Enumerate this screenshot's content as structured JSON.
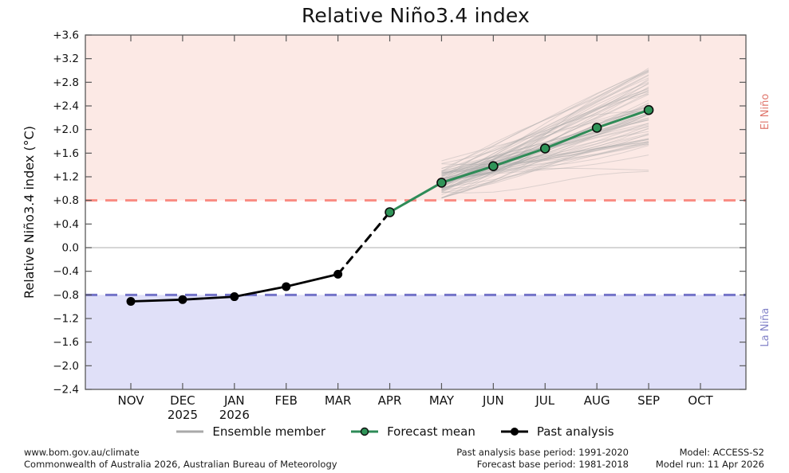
{
  "chart_data": {
    "type": "line",
    "title": "Relative Niño3.4 index",
    "xlabel": "",
    "ylabel": "Relative Niño3.4 index (°C)",
    "ylim": [
      -2.4,
      3.6
    ],
    "yticks": {
      "values": [
        3.6,
        3.2,
        2.8,
        2.4,
        2.0,
        1.6,
        1.2,
        0.8,
        0.4,
        0.0,
        -0.4,
        -0.8,
        -1.2,
        -1.6,
        -2.0,
        -2.4
      ],
      "labels": [
        "+3.6",
        "+3.2",
        "+2.8",
        "+2.4",
        "+2.0",
        "+1.6",
        "+1.2",
        "+0.8",
        "+0.4",
        "0.0",
        "−0.4",
        "−0.8",
        "−1.2",
        "−1.6",
        "−2.0",
        "−2.4"
      ]
    },
    "categories": [
      "NOV",
      "DEC",
      "JAN",
      "FEB",
      "MAR",
      "APR",
      "MAY",
      "JUN",
      "JUL",
      "AUG",
      "SEP",
      "OCT"
    ],
    "year_labels": [
      {
        "index": 1,
        "text": "2025"
      },
      {
        "index": 2,
        "text": "2026"
      }
    ],
    "grid": false,
    "bands": [
      {
        "name": "el-nino",
        "range": [
          0.8,
          3.6
        ],
        "fill": "#fce9e5",
        "label": "El Niño",
        "label_color": "#e0786e",
        "label_at": 2.3
      },
      {
        "name": "la-nina",
        "range": [
          -2.4,
          -0.8
        ],
        "fill": "#e0e0f8",
        "label": "La Niña",
        "label_color": "#8282c8",
        "label_at": -1.35
      }
    ],
    "thresholds": [
      {
        "name": "el-nino-threshold",
        "value": 0.8,
        "color": "#f98b82",
        "dash": [
          15,
          10
        ],
        "width": 3
      },
      {
        "name": "la-nina-threshold",
        "value": -0.8,
        "color": "#7373c8",
        "dash": [
          15,
          10
        ],
        "width": 3
      },
      {
        "name": "zero-line",
        "value": 0.0,
        "color": "#bdbdbd",
        "dash": null,
        "width": 1.2
      }
    ],
    "series": [
      {
        "name": "Past analysis",
        "role": "past",
        "color": "#000000",
        "width": 2.8,
        "marker": {
          "r": 5,
          "fill": "#000000",
          "stroke": "#000000",
          "stroke_width": 1
        },
        "x": [
          0,
          1,
          2,
          3,
          4
        ],
        "values": [
          -0.91,
          -0.88,
          -0.83,
          -0.66,
          -0.45
        ]
      },
      {
        "name": "Past-to-forecast transition",
        "role": "transition",
        "color": "#000000",
        "width": 3,
        "dash": [
          10,
          8
        ],
        "x": [
          4,
          5
        ],
        "values": [
          -0.45,
          0.6
        ]
      },
      {
        "name": "Forecast mean",
        "role": "forecast",
        "color": "#2e8b57",
        "width": 3,
        "marker": {
          "r": 5.5,
          "fill": "#2f9458",
          "stroke": "#0d0d0d",
          "stroke_width": 1.6
        },
        "x": [
          5,
          6,
          7,
          8,
          9,
          10
        ],
        "values": [
          0.6,
          1.1,
          1.38,
          1.68,
          2.03,
          2.33
        ]
      }
    ],
    "ensemble": {
      "label": "Ensemble member",
      "color": "#a9a9a9",
      "opacity": 0.38,
      "width": 1,
      "count": 72,
      "x_span": [
        6,
        10
      ],
      "start": {
        "mean": 1.12,
        "std": 0.15,
        "min": 0.84,
        "max": 1.66
      },
      "end": {
        "mean": 2.28,
        "std": 0.44,
        "min": 1.27,
        "max": 3.04
      },
      "wiggle": 0.06,
      "seed": 20260411
    },
    "legend": [
      {
        "type": "ensemble",
        "label": "Ensemble member"
      },
      {
        "type": "forecast",
        "label": "Forecast mean"
      },
      {
        "type": "past",
        "label": "Past analysis"
      }
    ],
    "legend_position": "bottom-center"
  },
  "footer": {
    "left_line1": "www.bom.gov.au/climate",
    "left_line2": "Commonwealth of Australia 2026, Australian Bureau of Meteorology",
    "mid_line1": "Past analysis base period: 1991-2020",
    "mid_line2": "Forecast base period: 1981-2018",
    "right_line1": "Model: ACCESS-S2",
    "right_line2": "Model run: 11 Apr 2026"
  }
}
